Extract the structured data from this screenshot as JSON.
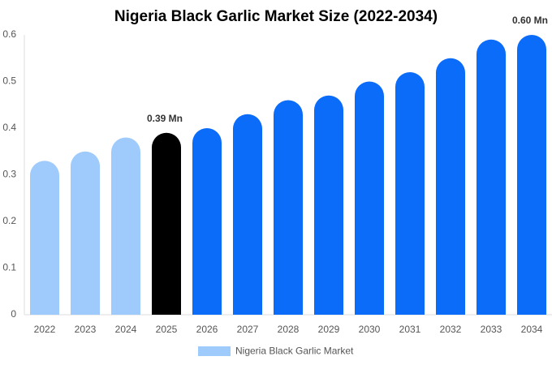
{
  "chart_data": {
    "type": "bar",
    "title": "Nigeria Black Garlic Market Size (2022-2034)",
    "categories": [
      "2022",
      "2023",
      "2024",
      "2025",
      "2026",
      "2027",
      "2028",
      "2029",
      "2030",
      "2031",
      "2032",
      "2033",
      "2034"
    ],
    "series": [
      {
        "name": "Nigeria Black Garlic Market",
        "color": "#9fcbfc",
        "values": [
          0.33,
          0.35,
          0.38,
          0.39,
          0.4,
          0.43,
          0.46,
          0.47,
          0.5,
          0.52,
          0.55,
          0.59,
          0.6
        ],
        "value_labels": [
          null,
          null,
          null,
          "0.39 Mn",
          null,
          null,
          null,
          null,
          null,
          null,
          null,
          null,
          "0.60 Mn"
        ],
        "bar_colors": [
          "#9fcbfc",
          "#9fcbfc",
          "#9fcbfc",
          "#000000",
          "#0b6cf9",
          "#0b6cf9",
          "#0b6cf9",
          "#0b6cf9",
          "#0b6cf9",
          "#0b6cf9",
          "#0b6cf9",
          "#0b6cf9",
          "#0b6cf9"
        ]
      }
    ],
    "ylim": [
      0,
      0.6
    ],
    "yticks": [
      0,
      0.1,
      0.2,
      0.3,
      0.4,
      0.5,
      0.6
    ],
    "grid": false,
    "legend": "bottom"
  }
}
